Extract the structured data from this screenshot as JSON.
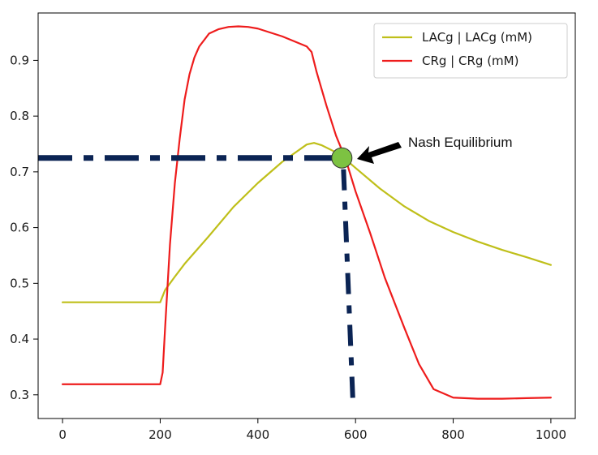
{
  "chart_data": {
    "type": "line",
    "title": "",
    "xlabel": "",
    "ylabel": "",
    "xlim": [
      -50,
      1050
    ],
    "ylim": [
      0.2575,
      0.985
    ],
    "xticks": [
      0,
      200,
      400,
      600,
      800,
      1000
    ],
    "yticks": [
      0.3,
      0.4,
      0.5,
      0.6,
      0.7,
      0.8,
      0.9
    ],
    "grid": false,
    "legend": "top-right",
    "series": [
      {
        "name": "LACg | LACg (mM)",
        "color": "#bfbf1a",
        "x": [
          0,
          100,
          200,
          210,
          230,
          250,
          300,
          350,
          400,
          450,
          500,
          515,
          530,
          560,
          580,
          600,
          650,
          700,
          750,
          800,
          850,
          900,
          950,
          1000
        ],
        "y": [
          0.466,
          0.466,
          0.466,
          0.488,
          0.512,
          0.535,
          0.585,
          0.637,
          0.68,
          0.718,
          0.749,
          0.752,
          0.748,
          0.735,
          0.722,
          0.707,
          0.67,
          0.638,
          0.612,
          0.592,
          0.575,
          0.56,
          0.547,
          0.533
        ]
      },
      {
        "name": "CRg | CRg (mM)",
        "color": "#ee1c1c",
        "x": [
          0,
          100,
          200,
          205,
          210,
          220,
          230,
          240,
          250,
          260,
          270,
          280,
          300,
          320,
          340,
          360,
          380,
          400,
          450,
          500,
          510,
          520,
          540,
          560,
          580,
          600,
          630,
          660,
          700,
          730,
          760,
          800,
          850,
          900,
          950,
          1000
        ],
        "y": [
          0.319,
          0.319,
          0.319,
          0.34,
          0.42,
          0.57,
          0.68,
          0.76,
          0.83,
          0.875,
          0.905,
          0.925,
          0.948,
          0.956,
          0.96,
          0.961,
          0.96,
          0.957,
          0.943,
          0.925,
          0.915,
          0.88,
          0.82,
          0.765,
          0.722,
          0.665,
          0.59,
          0.51,
          0.42,
          0.355,
          0.31,
          0.295,
          0.293,
          0.293,
          0.294,
          0.295
        ]
      }
    ],
    "equilibrium": {
      "x": 572,
      "y": 0.725,
      "color": "#7dc242"
    },
    "guide": {
      "color": "#0b2454",
      "horizontal": {
        "x_start": -50,
        "x_end": 572,
        "y": 0.725
      },
      "vertical": {
        "x_top": 572,
        "y_top": 0.725,
        "x_bottom": 595,
        "y_bottom": 0.28
      }
    },
    "annotation": {
      "text": "Nash Equilibrium",
      "x": 572,
      "y": 0.725
    }
  }
}
